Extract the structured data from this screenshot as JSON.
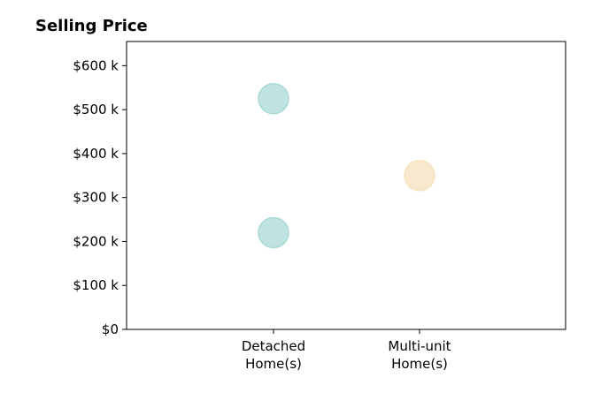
{
  "chart_data": {
    "type": "scatter",
    "title": "Selling Price",
    "xlabel": "",
    "ylabel": "",
    "categories": [
      [
        "Detached",
        "Home(s)"
      ],
      [
        "Multi-unit",
        "Home(s)"
      ]
    ],
    "y_ticks": [
      0,
      100000,
      200000,
      300000,
      400000,
      500000,
      600000
    ],
    "y_tick_labels": [
      "$0",
      "$100 k",
      "$200 k",
      "$300 k",
      "$400 k",
      "$500 k",
      "$600 k"
    ],
    "ylim": [
      0,
      655000
    ],
    "grid": false,
    "points": [
      {
        "category_index": 0,
        "y": 525000,
        "color": "#a8dad5"
      },
      {
        "category_index": 0,
        "y": 220000,
        "color": "#a8dad5"
      },
      {
        "category_index": 1,
        "y": 350000,
        "color": "#f6e2bd"
      }
    ]
  }
}
